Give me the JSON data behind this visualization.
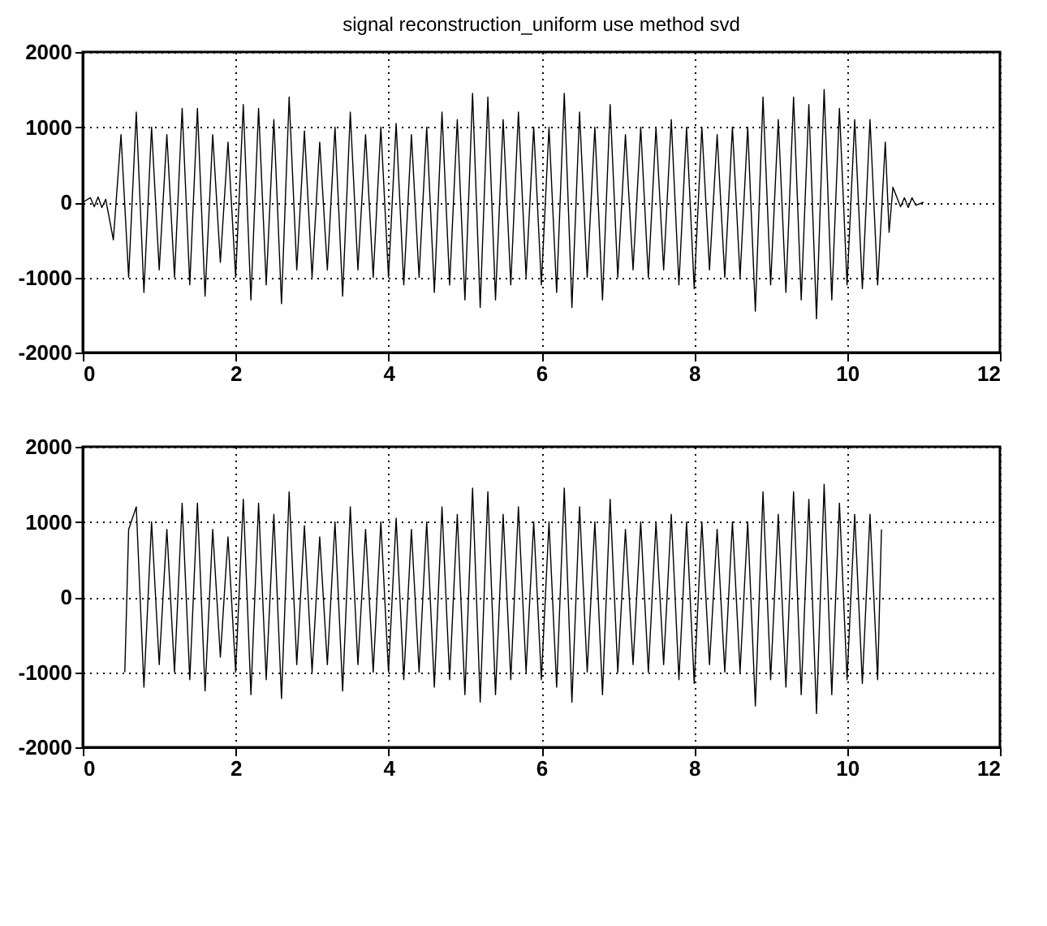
{
  "chart_data": [
    {
      "type": "line",
      "title": "signal reconstruction_uniform use method svd",
      "xlim": [
        0,
        12
      ],
      "xticks": [
        0,
        2,
        4,
        6,
        8,
        10,
        12
      ],
      "ylim": [
        -2000,
        2000
      ],
      "yticks": [
        -2000,
        -1000,
        0,
        1000,
        2000
      ],
      "grid": true,
      "marker": "none",
      "line_style": "solid",
      "series": [
        {
          "color": "#000000",
          "x": [
            0,
            0.1,
            0.15,
            0.2,
            0.25,
            0.3,
            0.4,
            0.5,
            0.6,
            0.7,
            0.8,
            0.9,
            1.0,
            1.1,
            1.2,
            1.3,
            1.4,
            1.5,
            1.6,
            1.7,
            1.8,
            1.9,
            2.0,
            2.1,
            2.2,
            2.3,
            2.4,
            2.5,
            2.6,
            2.7,
            2.8,
            2.9,
            3.0,
            3.1,
            3.2,
            3.3,
            3.4,
            3.5,
            3.6,
            3.7,
            3.8,
            3.9,
            4.0,
            4.1,
            4.2,
            4.3,
            4.4,
            4.5,
            4.6,
            4.7,
            4.8,
            4.9,
            5.0,
            5.1,
            5.2,
            5.3,
            5.4,
            5.5,
            5.6,
            5.7,
            5.8,
            5.9,
            6.0,
            6.1,
            6.2,
            6.3,
            6.4,
            6.5,
            6.6,
            6.7,
            6.8,
            6.9,
            7.0,
            7.1,
            7.2,
            7.3,
            7.4,
            7.5,
            7.6,
            7.7,
            7.8,
            7.9,
            8.0,
            8.1,
            8.2,
            8.3,
            8.4,
            8.5,
            8.6,
            8.7,
            8.8,
            8.9,
            9.0,
            9.1,
            9.2,
            9.3,
            9.4,
            9.5,
            9.6,
            9.7,
            9.8,
            9.9,
            10.0,
            10.1,
            10.2,
            10.3,
            10.4,
            10.5,
            10.55,
            10.6,
            10.7,
            10.75,
            10.8,
            10.85,
            10.9,
            11.0
          ],
          "values": [
            0,
            60,
            -60,
            70,
            -70,
            40,
            -500,
            900,
            -1000,
            1200,
            -1200,
            1000,
            -900,
            900,
            -1000,
            1250,
            -1100,
            1250,
            -1250,
            900,
            -800,
            800,
            -1000,
            1300,
            -1300,
            1250,
            -1100,
            1100,
            -1350,
            1400,
            -900,
            950,
            -1000,
            800,
            -900,
            1000,
            -1250,
            1200,
            -900,
            900,
            -1000,
            1000,
            -1000,
            1050,
            -1100,
            900,
            -1000,
            1000,
            -1200,
            1200,
            -1100,
            1100,
            -1300,
            1450,
            -1400,
            1400,
            -1300,
            1100,
            -1100,
            1200,
            -1000,
            1000,
            -1100,
            1000,
            -1200,
            1450,
            -1400,
            1200,
            -1000,
            1000,
            -1300,
            1300,
            -1000,
            900,
            -900,
            1000,
            -1000,
            1000,
            -900,
            1100,
            -1100,
            1000,
            -1150,
            1000,
            -900,
            900,
            -1000,
            1000,
            -1000,
            1000,
            -1450,
            1400,
            -1100,
            1100,
            -1200,
            1400,
            -1300,
            1300,
            -1550,
            1500,
            -1300,
            1250,
            -1100,
            1100,
            -1150,
            1100,
            -1100,
            800,
            -400,
            200,
            -60,
            60,
            -70,
            60,
            -40,
            0
          ]
        }
      ]
    },
    {
      "type": "line",
      "xlim": [
        0,
        12
      ],
      "xticks": [
        0,
        2,
        4,
        6,
        8,
        10,
        12
      ],
      "ylim": [
        -2000,
        2000
      ],
      "yticks": [
        -2000,
        -1000,
        0,
        1000,
        2000
      ],
      "grid": true,
      "marker": "none",
      "line_style": "solid",
      "series": [
        {
          "color": "#000000",
          "x": [
            0.55,
            0.6,
            0.7,
            0.8,
            0.9,
            1.0,
            1.1,
            1.2,
            1.3,
            1.4,
            1.5,
            1.6,
            1.7,
            1.8,
            1.9,
            2.0,
            2.1,
            2.2,
            2.3,
            2.4,
            2.5,
            2.6,
            2.7,
            2.8,
            2.9,
            3.0,
            3.1,
            3.2,
            3.3,
            3.4,
            3.5,
            3.6,
            3.7,
            3.8,
            3.9,
            4.0,
            4.1,
            4.2,
            4.3,
            4.4,
            4.5,
            4.6,
            4.7,
            4.8,
            4.9,
            5.0,
            5.1,
            5.2,
            5.3,
            5.4,
            5.5,
            5.6,
            5.7,
            5.8,
            5.9,
            6.0,
            6.1,
            6.2,
            6.3,
            6.4,
            6.5,
            6.6,
            6.7,
            6.8,
            6.9,
            7.0,
            7.1,
            7.2,
            7.3,
            7.4,
            7.5,
            7.6,
            7.7,
            7.8,
            7.9,
            8.0,
            8.1,
            8.2,
            8.3,
            8.4,
            8.5,
            8.6,
            8.7,
            8.8,
            8.9,
            9.0,
            9.1,
            9.2,
            9.3,
            9.4,
            9.5,
            9.6,
            9.7,
            9.8,
            9.9,
            10.0,
            10.1,
            10.2,
            10.3,
            10.4,
            10.45
          ],
          "values": [
            -1000,
            900,
            1200,
            -1200,
            1000,
            -900,
            900,
            -1000,
            1250,
            -1100,
            1250,
            -1250,
            900,
            -800,
            800,
            -1000,
            1300,
            -1300,
            1250,
            -1100,
            1100,
            -1350,
            1400,
            -900,
            950,
            -1000,
            800,
            -900,
            1000,
            -1250,
            1200,
            -900,
            900,
            -1000,
            1000,
            -1000,
            1050,
            -1100,
            900,
            -1000,
            1000,
            -1200,
            1200,
            -1100,
            1100,
            -1300,
            1450,
            -1400,
            1400,
            -1300,
            1100,
            -1100,
            1200,
            -1000,
            1000,
            -1100,
            1000,
            -1200,
            1450,
            -1400,
            1200,
            -1000,
            1000,
            -1300,
            1300,
            -1000,
            900,
            -900,
            1000,
            -1000,
            1000,
            -900,
            1100,
            -1100,
            1000,
            -1150,
            1000,
            -900,
            900,
            -1000,
            1000,
            -1000,
            1000,
            -1450,
            1400,
            -1100,
            1100,
            -1200,
            1400,
            -1300,
            1300,
            -1550,
            1500,
            -1300,
            1250,
            -1100,
            1100,
            -1150,
            1100,
            -1100,
            900
          ]
        }
      ]
    }
  ]
}
